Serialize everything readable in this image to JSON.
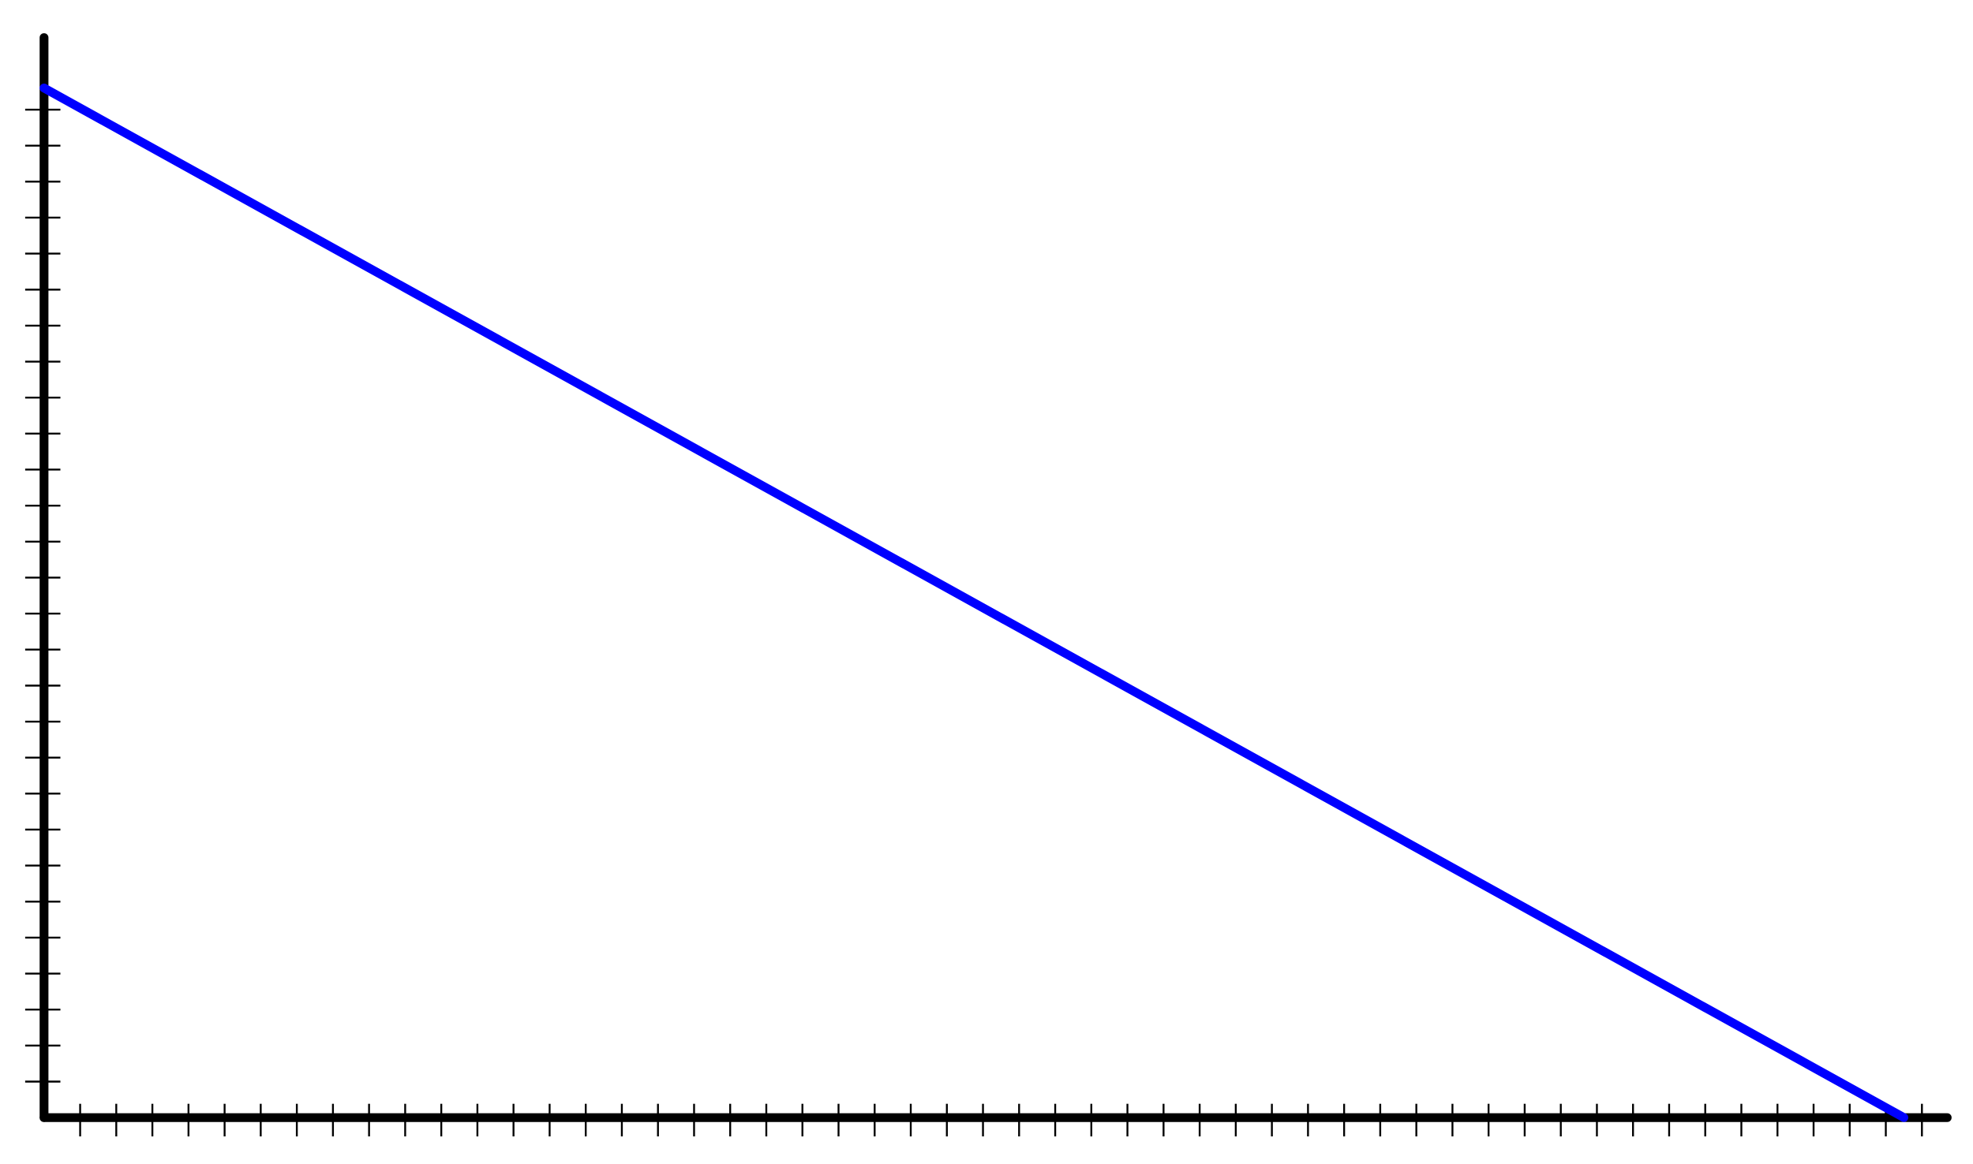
{
  "chart_data": {
    "type": "line",
    "x": [
      0,
      51.5
    ],
    "values": [
      28.6,
      0
    ],
    "color": "#0000ff",
    "xlim": [
      0,
      52.7
    ],
    "ylim": [
      0,
      30
    ],
    "xticks": [
      1,
      2,
      3,
      4,
      5,
      6,
      7,
      8,
      9,
      10,
      11,
      12,
      13,
      14,
      15,
      16,
      17,
      18,
      19,
      20,
      21,
      22,
      23,
      24,
      25,
      26,
      27,
      28,
      29,
      30,
      31,
      32,
      33,
      34,
      35,
      36,
      37,
      38,
      39,
      40,
      41,
      42,
      43,
      44,
      45,
      46,
      47,
      48,
      49,
      50,
      51,
      52
    ],
    "yticks": [
      1,
      2,
      3,
      4,
      5,
      6,
      7,
      8,
      9,
      10,
      11,
      12,
      13,
      14,
      15,
      16,
      17,
      18,
      19,
      20,
      21,
      22,
      23,
      24,
      25,
      26,
      27,
      28
    ]
  }
}
